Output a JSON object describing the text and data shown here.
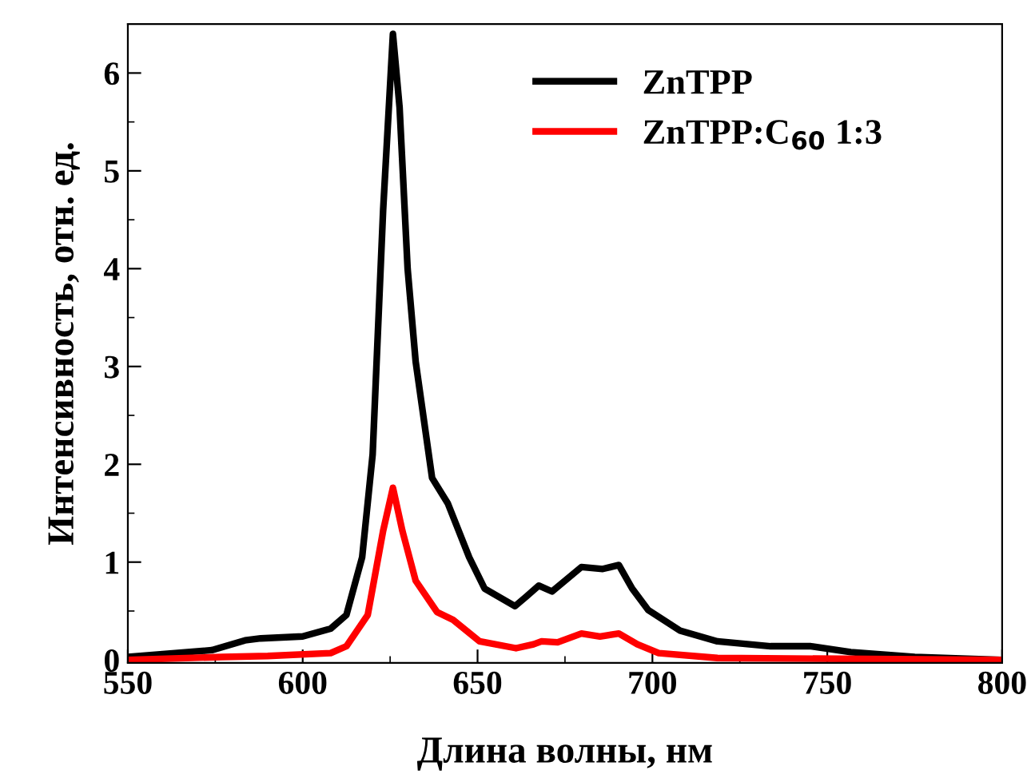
{
  "chart_data": {
    "type": "line",
    "xlabel": "Длина волны, нм",
    "ylabel": "Интенсивность, отн. ед.",
    "xlim": [
      550,
      800
    ],
    "xticks": [
      550,
      600,
      650,
      700,
      750,
      800
    ],
    "ylim": [
      -0.03,
      6.5
    ],
    "yticks": [
      0,
      1,
      2,
      3,
      4,
      5,
      6
    ],
    "legend": "top right",
    "grid": false,
    "series": [
      {
        "name": "ZnTPP",
        "color": "#000000",
        "x": [
          550,
          574,
          583.5,
          588,
          600,
          608,
          612.5,
          617,
          620,
          623,
          625.8,
          627.7,
          630,
          632.3,
          637,
          641.5,
          647.6,
          652,
          660.7,
          664,
          667.5,
          671.3,
          679.7,
          685.8,
          690.4,
          694.2,
          698.8,
          707.9,
          718.6,
          733.8,
          745.3,
          756.7,
          775,
          800
        ],
        "values": [
          0.03,
          0.1,
          0.2,
          0.22,
          0.24,
          0.32,
          0.46,
          1.05,
          2.1,
          4.6,
          6.4,
          5.65,
          4.0,
          3.05,
          1.86,
          1.6,
          1.05,
          0.73,
          0.55,
          0.65,
          0.76,
          0.7,
          0.95,
          0.93,
          0.97,
          0.73,
          0.51,
          0.3,
          0.19,
          0.14,
          0.14,
          0.08,
          0.03,
          0.0
        ]
      },
      {
        "name": "ZnTPP:C$_{60}$ 1:3",
        "color": "#ff0000",
        "x": [
          550,
          577,
          590,
          608,
          612.5,
          618.6,
          623,
          625.8,
          628.5,
          632.3,
          638.4,
          643,
          650.6,
          661,
          666,
          668.3,
          672.9,
          679.7,
          685,
          690.4,
          695.7,
          701.8,
          718.6,
          800
        ],
        "values": [
          0.0,
          0.03,
          0.04,
          0.07,
          0.14,
          0.46,
          1.32,
          1.76,
          1.32,
          0.81,
          0.49,
          0.41,
          0.19,
          0.12,
          0.16,
          0.19,
          0.18,
          0.27,
          0.24,
          0.27,
          0.16,
          0.07,
          0.02,
          0.0
        ]
      }
    ]
  }
}
